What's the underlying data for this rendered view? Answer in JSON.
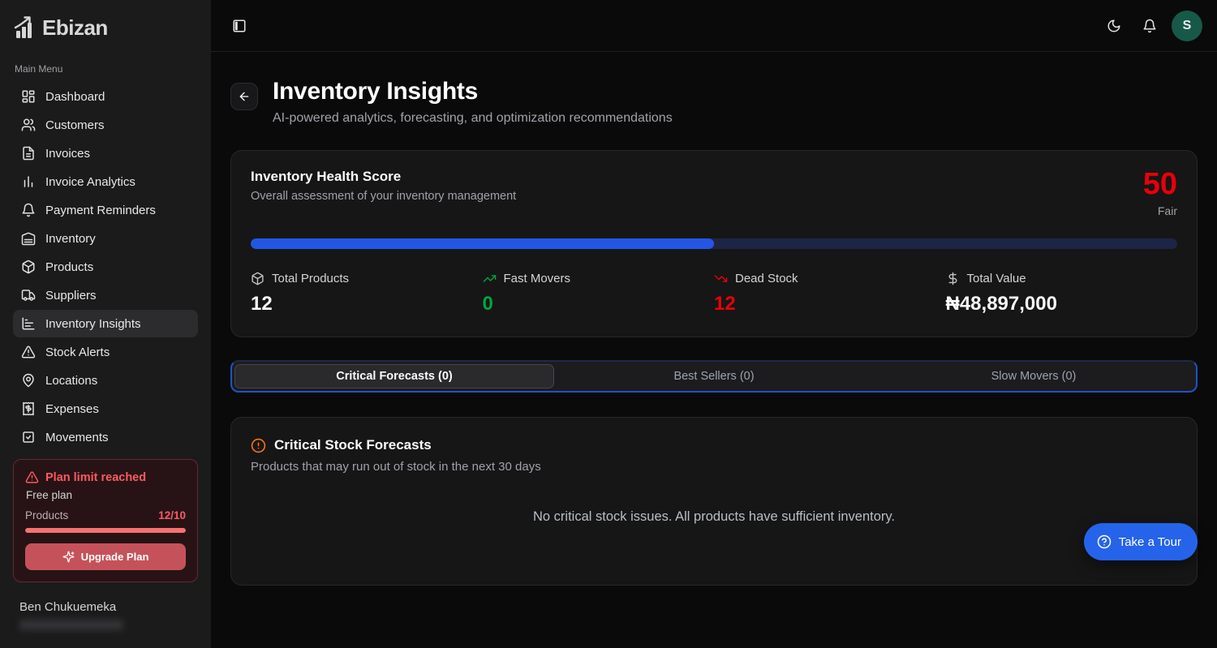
{
  "brand": {
    "name": "Ebizan",
    "logo_icon": "bar-chart-growth-icon"
  },
  "sidebar": {
    "section_label": "Main Menu",
    "items": [
      {
        "label": "Dashboard",
        "icon": "dashboard-icon",
        "active": false
      },
      {
        "label": "Customers",
        "icon": "customers-icon",
        "active": false
      },
      {
        "label": "Invoices",
        "icon": "invoice-icon",
        "active": false
      },
      {
        "label": "Invoice Analytics",
        "icon": "bar-chart-icon",
        "active": false
      },
      {
        "label": "Payment Reminders",
        "icon": "bell-icon",
        "active": false
      },
      {
        "label": "Inventory",
        "icon": "warehouse-icon",
        "active": false
      },
      {
        "label": "Products",
        "icon": "package-icon",
        "active": false
      },
      {
        "label": "Suppliers",
        "icon": "truck-icon",
        "active": false
      },
      {
        "label": "Inventory Insights",
        "icon": "chart-bars-icon",
        "active": true
      },
      {
        "label": "Stock Alerts",
        "icon": "alert-triangle-icon",
        "active": false
      },
      {
        "label": "Locations",
        "icon": "map-pin-icon",
        "active": false
      },
      {
        "label": "Expenses",
        "icon": "receipt-icon",
        "active": false
      },
      {
        "label": "Movements",
        "icon": "package-check-icon",
        "active": false
      }
    ],
    "plan_card": {
      "title": "Plan limit reached",
      "plan_name": "Free plan",
      "usage_label": "Products",
      "usage_value": "12/10",
      "usage_pct": 100,
      "upgrade_label": "Upgrade Plan"
    },
    "user": {
      "name": "Ben Chukuemeka"
    }
  },
  "topbar": {
    "avatar_initial": "S",
    "icons": [
      "panel-left-icon",
      "moon-icon",
      "bell-icon"
    ]
  },
  "header": {
    "title": "Inventory Insights",
    "subtitle": "AI-powered analytics, forecasting, and optimization recommendations"
  },
  "health": {
    "title": "Inventory Health Score",
    "subtitle": "Overall assessment of your inventory management",
    "score": "50",
    "rating": "Fair",
    "progress_pct": 50,
    "stats": [
      {
        "label": "Total Products",
        "value": "12",
        "icon": "package-icon",
        "color": "#fafafa"
      },
      {
        "label": "Fast Movers",
        "value": "0",
        "icon": "trending-up-icon",
        "color": "#00a63e"
      },
      {
        "label": "Dead Stock",
        "value": "12",
        "icon": "trending-down-icon",
        "color": "#e7000b"
      },
      {
        "label": "Total Value",
        "value": "₦48,897,000",
        "icon": "dollar-icon",
        "color": "#fafafa"
      }
    ]
  },
  "tabs": [
    {
      "label": "Critical Forecasts (0)",
      "active": true
    },
    {
      "label": "Best Sellers (0)",
      "active": false
    },
    {
      "label": "Slow Movers (0)",
      "active": false
    }
  ],
  "forecast_card": {
    "title": "Critical Stock Forecasts",
    "subtitle": "Products that may run out of stock in the next 30 days",
    "empty_message": "No critical stock issues. All products have sufficient inventory."
  },
  "tour_button": {
    "label": "Take a Tour"
  },
  "colors": {
    "background": "#0a0a0a",
    "sidebar": "#1b1b1b",
    "card": "#161616",
    "accent_blue": "#2456e4",
    "tab_ring_blue": "#2053c5",
    "tour_blue": "#2563eb",
    "score_red": "#e7000b",
    "plan_red": "#fb5a5f",
    "plan_bar": "#f87171",
    "upgrade_button": "#c5525a",
    "green": "#00a63e",
    "warning_orange": "#f97316",
    "avatar_green": "#175949"
  }
}
